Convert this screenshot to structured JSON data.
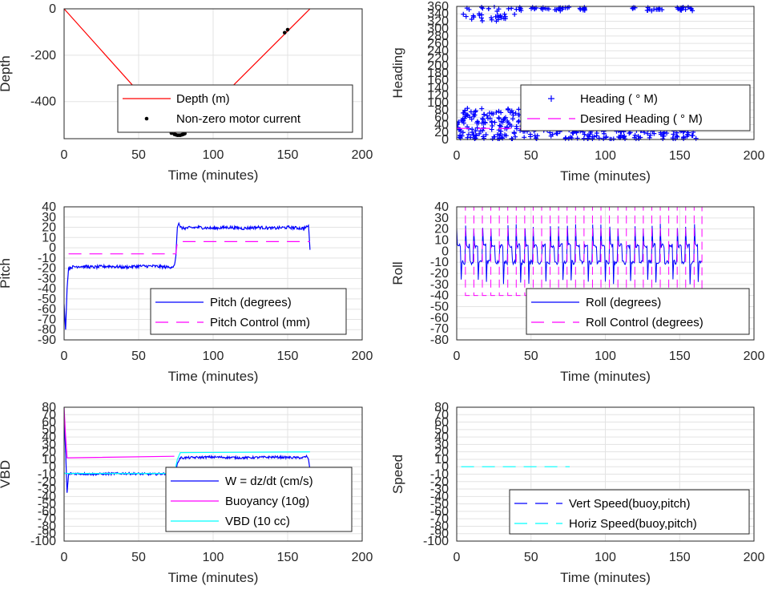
{
  "chart_data": [
    {
      "id": "depth",
      "type": "line",
      "xlabel": "Time (minutes)",
      "ylabel": "Depth",
      "xlim": [
        0,
        200
      ],
      "ylim": [
        -560,
        0
      ],
      "xticks": [
        0,
        50,
        100,
        150,
        200
      ],
      "yticks": [
        0,
        -200,
        -400
      ],
      "series": [
        {
          "name": "Depth (m)",
          "style": "solid",
          "color": "#ff0000",
          "x": [
            0,
            76,
            80,
            165
          ],
          "y": [
            0,
            -545,
            -545,
            0
          ]
        },
        {
          "name": "Non-zero motor current",
          "style": "dots",
          "color": "#000000",
          "x": [
            72,
            74,
            75,
            76,
            77,
            78,
            79,
            80,
            81,
            113,
            148,
            150
          ],
          "y": [
            -536,
            -541,
            -543,
            -545,
            -545,
            -545,
            -543,
            -541,
            -538,
            -336,
            -103,
            -90
          ]
        }
      ]
    },
    {
      "id": "heading",
      "type": "scatter",
      "xlabel": "Time (minutes)",
      "ylabel": "Heading",
      "xlim": [
        0,
        200
      ],
      "ylim": [
        0,
        360
      ],
      "xticks": [
        0,
        50,
        100,
        150,
        200
      ],
      "yticks": [
        0,
        20,
        40,
        60,
        80,
        100,
        120,
        140,
        160,
        180,
        200,
        220,
        240,
        260,
        280,
        300,
        320,
        340,
        360
      ],
      "series": [
        {
          "name": "Heading ( ° M)",
          "style": "plus",
          "color": "#0000ff",
          "clusters": [
            {
              "x": [
                0,
                40
              ],
              "y": [
                320,
                360
              ]
            },
            {
              "x": [
                40,
                45
              ],
              "y": [
                345,
                358
              ]
            },
            {
              "x": [
                50,
                62
              ],
              "y": [
                348,
                358
              ]
            },
            {
              "x": [
                66,
                78
              ],
              "y": [
                348,
                358
              ]
            },
            {
              "x": [
                80,
                89
              ],
              "y": [
                348,
                358
              ]
            },
            {
              "x": [
                118,
                120
              ],
              "y": [
                352,
                358
              ]
            },
            {
              "x": [
                127,
                139
              ],
              "y": [
                348,
                358
              ]
            },
            {
              "x": [
                147,
                162
              ],
              "y": [
                348,
                358
              ]
            },
            {
              "x": [
                0,
                165
              ],
              "y": [
                0,
                85
              ]
            }
          ]
        },
        {
          "name": "Desired Heading ( ° M)",
          "style": "dashed",
          "color": "#ff00ff",
          "x": [
            0,
            165
          ],
          "y": [
            30,
            30
          ]
        }
      ]
    },
    {
      "id": "pitch",
      "type": "line",
      "xlabel": "Time (minutes)",
      "ylabel": "Pitch",
      "xlim": [
        0,
        200
      ],
      "ylim": [
        -90,
        40
      ],
      "xticks": [
        0,
        50,
        100,
        150,
        200
      ],
      "yticks": [
        40,
        30,
        20,
        10,
        0,
        -10,
        -20,
        -30,
        -40,
        -50,
        -60,
        -70,
        -80,
        -90
      ],
      "series": [
        {
          "name": "Pitch (degrees)",
          "style": "solid",
          "color": "#0000ff",
          "x": [
            0,
            1,
            2,
            3,
            5,
            10,
            20,
            30,
            40,
            50,
            60,
            70,
            74,
            75,
            76,
            77,
            78,
            80,
            90,
            100,
            110,
            120,
            130,
            140,
            150,
            160,
            163,
            164,
            165
          ],
          "y": [
            -55,
            -80,
            -40,
            -20,
            -19,
            -18,
            -19,
            -18,
            -19,
            -18,
            -18,
            -19,
            -18,
            -8,
            20,
            24,
            20,
            19,
            20,
            19,
            20,
            19,
            20,
            19,
            20,
            19,
            20,
            22,
            -2
          ]
        },
        {
          "name": "Pitch Control (mm)",
          "style": "dashed",
          "color": "#ff00ff",
          "x": [
            3,
            75,
            76,
            165
          ],
          "y": [
            -6,
            -6,
            6,
            6
          ]
        }
      ]
    },
    {
      "id": "roll",
      "type": "line",
      "xlabel": "Time (minutes)",
      "ylabel": "Roll",
      "xlim": [
        0,
        200
      ],
      "ylim": [
        -80,
        40
      ],
      "xticks": [
        0,
        50,
        100,
        150,
        200
      ],
      "yticks": [
        40,
        30,
        20,
        10,
        0,
        -10,
        -20,
        -30,
        -40,
        -50,
        -60,
        -70,
        -80
      ],
      "series": [
        {
          "name": "Roll (degrees)",
          "style": "solid",
          "color": "#0000ff",
          "pattern": "oscillating",
          "range": [
            -30,
            25
          ],
          "x": [
            0,
            165
          ]
        },
        {
          "name": "Roll Control (degrees)",
          "style": "dashed",
          "color": "#ff00ff",
          "pattern": "square-wave",
          "range": [
            -40,
            40
          ],
          "x": [
            3,
            165
          ]
        }
      ]
    },
    {
      "id": "vbd",
      "type": "line",
      "xlabel": "Time (minutes)",
      "ylabel": "VBD",
      "xlim": [
        0,
        200
      ],
      "ylim": [
        -100,
        80
      ],
      "xticks": [
        0,
        50,
        100,
        150,
        200
      ],
      "yticks": [
        80,
        70,
        60,
        50,
        40,
        30,
        20,
        10,
        0,
        -10,
        -20,
        -30,
        -40,
        -50,
        -60,
        -70,
        -80,
        -90,
        -100
      ],
      "series": [
        {
          "name": "W = dz/dt (cm/s)",
          "style": "solid",
          "color": "#0000ff",
          "x": [
            0,
            1,
            2,
            3,
            5,
            20,
            40,
            60,
            72,
            75,
            76,
            78,
            80,
            100,
            120,
            140,
            160,
            163,
            164,
            165
          ],
          "y": [
            70,
            20,
            -35,
            -10,
            -9,
            -10,
            -9,
            -10,
            -9,
            -8,
            5,
            12,
            12,
            13,
            12,
            13,
            12,
            14,
            10,
            -5
          ]
        },
        {
          "name": "Buoyancy (10g)",
          "style": "solid",
          "color": "#ff00ff",
          "x": [
            0,
            1,
            2,
            3,
            74
          ],
          "y": [
            80,
            40,
            12,
            12,
            14
          ]
        },
        {
          "name": "VBD (10 cc)",
          "style": "solid",
          "color": "#00ffff",
          "x": [
            0,
            1,
            3,
            74,
            76,
            78,
            165
          ],
          "y": [
            -8,
            -9,
            -9,
            -9,
            10,
            19,
            20
          ]
        }
      ]
    },
    {
      "id": "speed",
      "type": "line",
      "xlabel": "Time (minutes)",
      "ylabel": "Speed",
      "xlim": [
        0,
        200
      ],
      "ylim": [
        -100,
        80
      ],
      "xticks": [
        0,
        50,
        100,
        150,
        200
      ],
      "yticks": [
        80,
        70,
        60,
        50,
        40,
        30,
        20,
        10,
        0,
        -10,
        -20,
        -30,
        -40,
        -50,
        -60,
        -70,
        -80,
        -90,
        -100
      ],
      "series": [
        {
          "name": "Vert Speed(buoy,pitch)",
          "style": "dashed",
          "color": "#0000ff",
          "x": [],
          "y": []
        },
        {
          "name": "Horiz Speed(buoy,pitch)",
          "style": "dashed",
          "color": "#00ffff",
          "x": [
            3,
            76
          ],
          "y": [
            0,
            0
          ]
        }
      ]
    }
  ]
}
